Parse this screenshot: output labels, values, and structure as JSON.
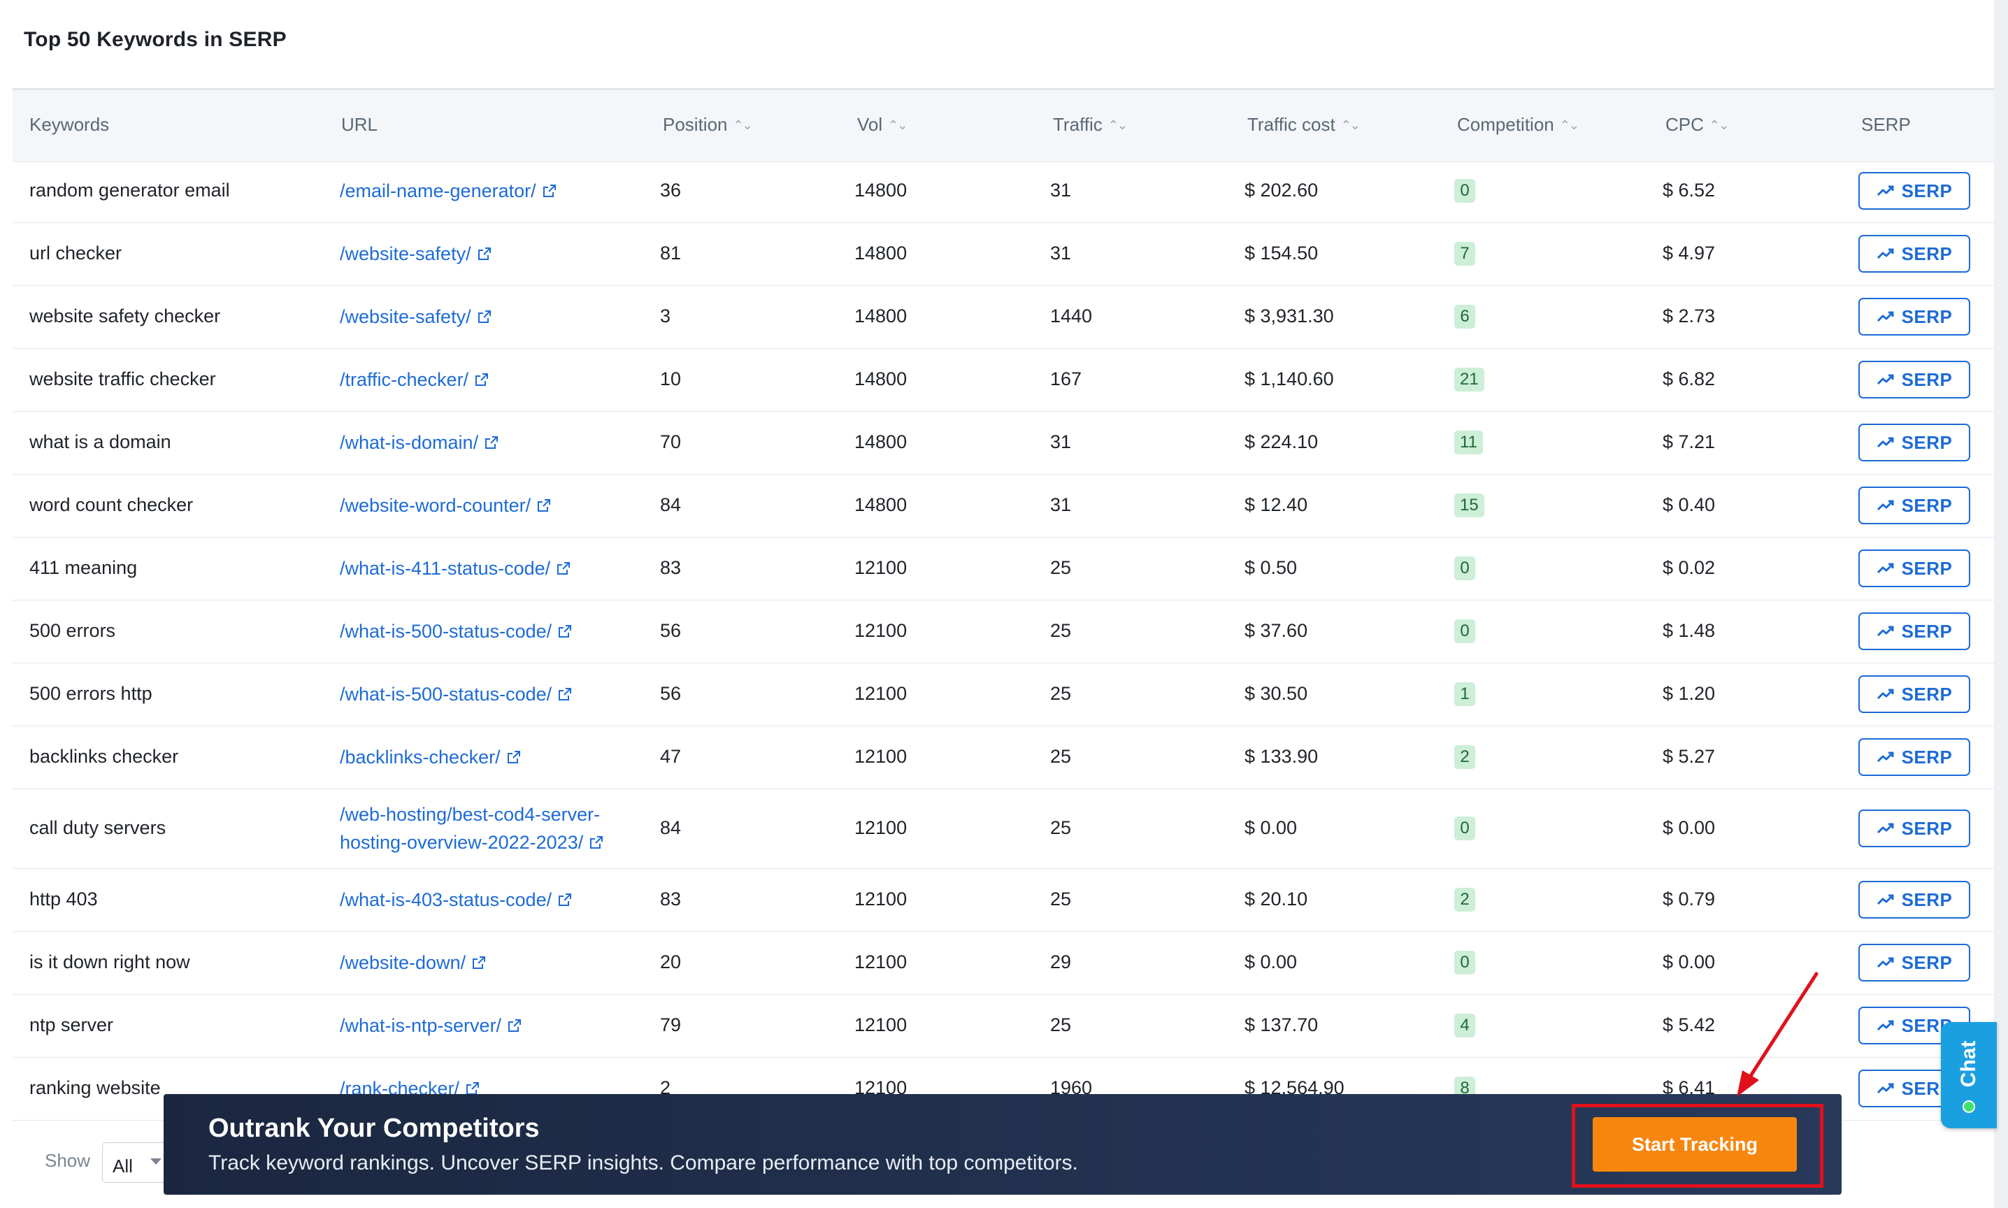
{
  "section_title": "Top 50 Keywords in SERP",
  "columns": {
    "keywords": "Keywords",
    "url": "URL",
    "position": "Position",
    "vol": "Vol",
    "traffic": "Traffic",
    "traffic_cost": "Traffic cost",
    "competition": "Competition",
    "cpc": "CPC",
    "serp": "SERP"
  },
  "sort_glyph": "⌃⌄",
  "serp_button_label": "SERP",
  "rows": [
    {
      "keyword": "random generator email",
      "url": "/email-name-generator/",
      "position": "36",
      "vol": "14800",
      "traffic": "31",
      "traffic_cost": "$ 202.60",
      "competition": "0",
      "cpc": "$ 6.52"
    },
    {
      "keyword": "url checker",
      "url": "/website-safety/",
      "position": "81",
      "vol": "14800",
      "traffic": "31",
      "traffic_cost": "$ 154.50",
      "competition": "7",
      "cpc": "$ 4.97"
    },
    {
      "keyword": "website safety checker",
      "url": "/website-safety/",
      "position": "3",
      "vol": "14800",
      "traffic": "1440",
      "traffic_cost": "$ 3,931.30",
      "competition": "6",
      "cpc": "$ 2.73"
    },
    {
      "keyword": "website traffic checker",
      "url": "/traffic-checker/",
      "position": "10",
      "vol": "14800",
      "traffic": "167",
      "traffic_cost": "$ 1,140.60",
      "competition": "21",
      "cpc": "$ 6.82"
    },
    {
      "keyword": "what is a domain",
      "url": "/what-is-domain/",
      "position": "70",
      "vol": "14800",
      "traffic": "31",
      "traffic_cost": "$ 224.10",
      "competition": "11",
      "cpc": "$ 7.21"
    },
    {
      "keyword": "word count checker",
      "url": "/website-word-counter/",
      "position": "84",
      "vol": "14800",
      "traffic": "31",
      "traffic_cost": "$ 12.40",
      "competition": "15",
      "cpc": "$ 0.40"
    },
    {
      "keyword": "411 meaning",
      "url": "/what-is-411-status-code/",
      "position": "83",
      "vol": "12100",
      "traffic": "25",
      "traffic_cost": "$ 0.50",
      "competition": "0",
      "cpc": "$ 0.02"
    },
    {
      "keyword": "500 errors",
      "url": "/what-is-500-status-code/",
      "position": "56",
      "vol": "12100",
      "traffic": "25",
      "traffic_cost": "$ 37.60",
      "competition": "0",
      "cpc": "$ 1.48"
    },
    {
      "keyword": "500 errors http",
      "url": "/what-is-500-status-code/",
      "position": "56",
      "vol": "12100",
      "traffic": "25",
      "traffic_cost": "$ 30.50",
      "competition": "1",
      "cpc": "$ 1.20"
    },
    {
      "keyword": "backlinks checker",
      "url": "/backlinks-checker/",
      "position": "47",
      "vol": "12100",
      "traffic": "25",
      "traffic_cost": "$ 133.90",
      "competition": "2",
      "cpc": "$ 5.27"
    },
    {
      "keyword": "call duty servers",
      "url": "/web-hosting/best-cod4-server-hosting-overview-2022-2023/",
      "position": "84",
      "vol": "12100",
      "traffic": "25",
      "traffic_cost": "$ 0.00",
      "competition": "0",
      "cpc": "$ 0.00"
    },
    {
      "keyword": "http 403",
      "url": "/what-is-403-status-code/",
      "position": "83",
      "vol": "12100",
      "traffic": "25",
      "traffic_cost": "$ 20.10",
      "competition": "2",
      "cpc": "$ 0.79"
    },
    {
      "keyword": "is it down right now",
      "url": "/website-down/",
      "position": "20",
      "vol": "12100",
      "traffic": "29",
      "traffic_cost": "$ 0.00",
      "competition": "0",
      "cpc": "$ 0.00"
    },
    {
      "keyword": "ntp server",
      "url": "/what-is-ntp-server/",
      "position": "79",
      "vol": "12100",
      "traffic": "25",
      "traffic_cost": "$ 137.70",
      "competition": "4",
      "cpc": "$ 5.42"
    },
    {
      "keyword": "ranking website",
      "url": "/rank-checker/",
      "position": "2",
      "vol": "12100",
      "traffic": "1960",
      "traffic_cost": "$ 12,564.90",
      "competition": "8",
      "cpc": "$ 6.41"
    }
  ],
  "footer": {
    "show_label": "Show",
    "page_size": "All"
  },
  "banner": {
    "title": "Outrank Your Competitors",
    "subtitle": "Track keyword rankings. Uncover SERP insights. Compare performance with top competitors.",
    "cta_label": "Start Tracking"
  },
  "chat": {
    "label": "Chat"
  },
  "colors": {
    "link": "#1d6bd6",
    "badge_bg": "#cdeed7",
    "badge_text": "#1d6b36",
    "cta": "#f7860f",
    "highlight": "#e0111b",
    "banner_bg": "#1b2740",
    "chat_bg": "#1aa0e0"
  }
}
